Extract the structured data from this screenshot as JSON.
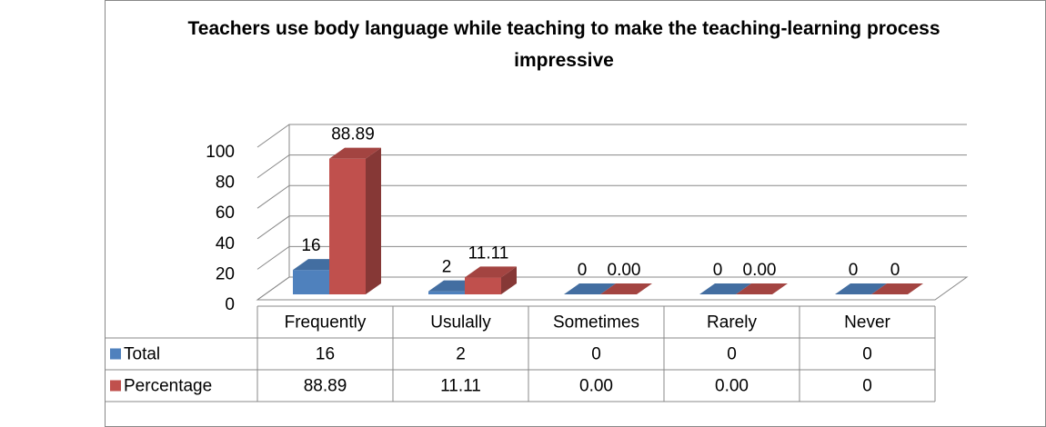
{
  "chart_data": {
    "type": "bar3d",
    "title": "Teachers use body language while teaching to make the teaching-learning process impressive",
    "categories": [
      "Frequently",
      "Usulally",
      "Sometimes",
      "Rarely",
      "Never"
    ],
    "series": [
      {
        "name": "Total",
        "color": "#4f81bd",
        "values": [
          16,
          2,
          0,
          0,
          0
        ]
      },
      {
        "name": "Percentage",
        "color": "#c0504d",
        "values": [
          88.89,
          11.11,
          0,
          0,
          0
        ],
        "value_labels": [
          "88.89",
          "11.11",
          "0.00",
          "0.00",
          "0"
        ]
      }
    ],
    "ylim": [
      0,
      100
    ],
    "yticks": [
      0,
      20,
      40,
      60,
      80,
      100
    ],
    "grid": true
  }
}
